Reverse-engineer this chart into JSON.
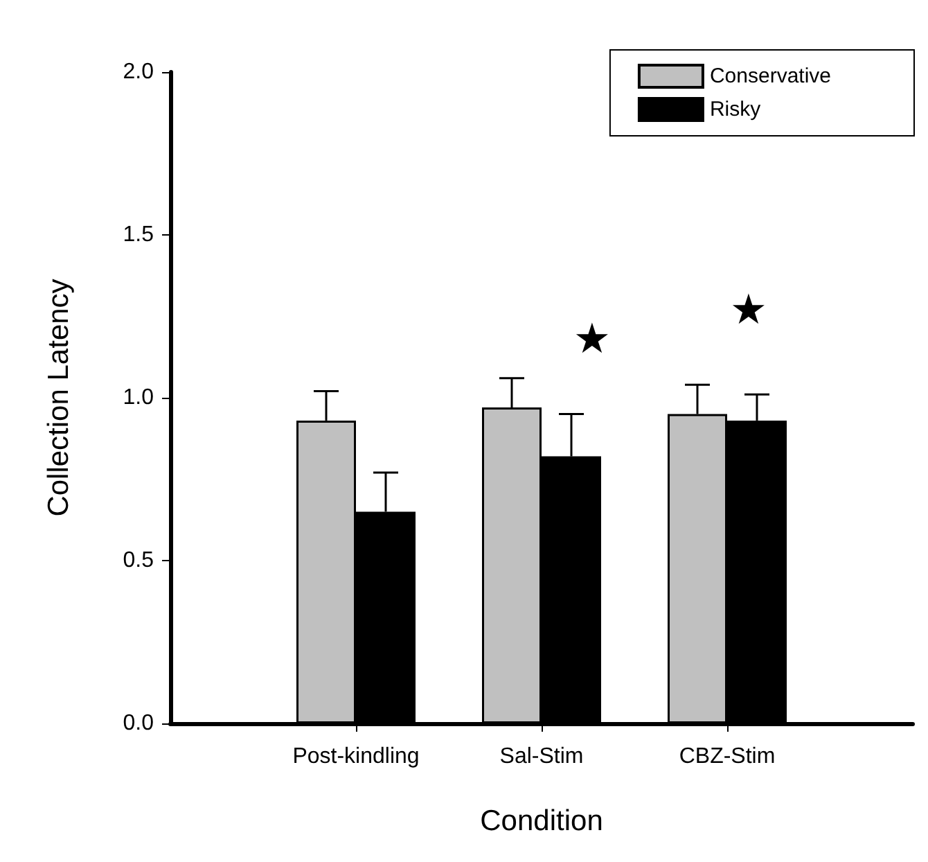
{
  "chart_data": {
    "type": "bar",
    "xlabel": "Condition",
    "ylabel": "Collection Latency",
    "categories": [
      null,
      "Post-kindling",
      "Sal-Stim",
      "CBZ-Stim",
      null
    ],
    "series": [
      {
        "name": "Conservative",
        "color": "#c0c0c0",
        "values": [
          null,
          0.93,
          0.97,
          0.95,
          null
        ],
        "errors": [
          null,
          [
            0.93,
            1.02
          ],
          [
            0.97,
            1.06
          ],
          [
            0.95,
            1.04
          ],
          null
        ]
      },
      {
        "name": "Risky",
        "color": "#000000",
        "values": [
          null,
          0.65,
          0.82,
          0.93,
          null
        ],
        "errors": [
          null,
          [
            0.65,
            0.77
          ],
          [
            0.82,
            0.95
          ],
          [
            0.93,
            1.01
          ],
          null
        ]
      }
    ],
    "annotations": [
      "★",
      "★"
    ],
    "ylim": [
      0,
      2.0
    ],
    "yticks": [
      {
        "value": 0,
        "label": "0.0"
      },
      0.5,
      {
        "value": 1,
        "label": "1.0"
      },
      1.5,
      {
        "value": 2,
        "label": "2.0"
      }
    ],
    "grid": false,
    "legend": "top right"
  }
}
